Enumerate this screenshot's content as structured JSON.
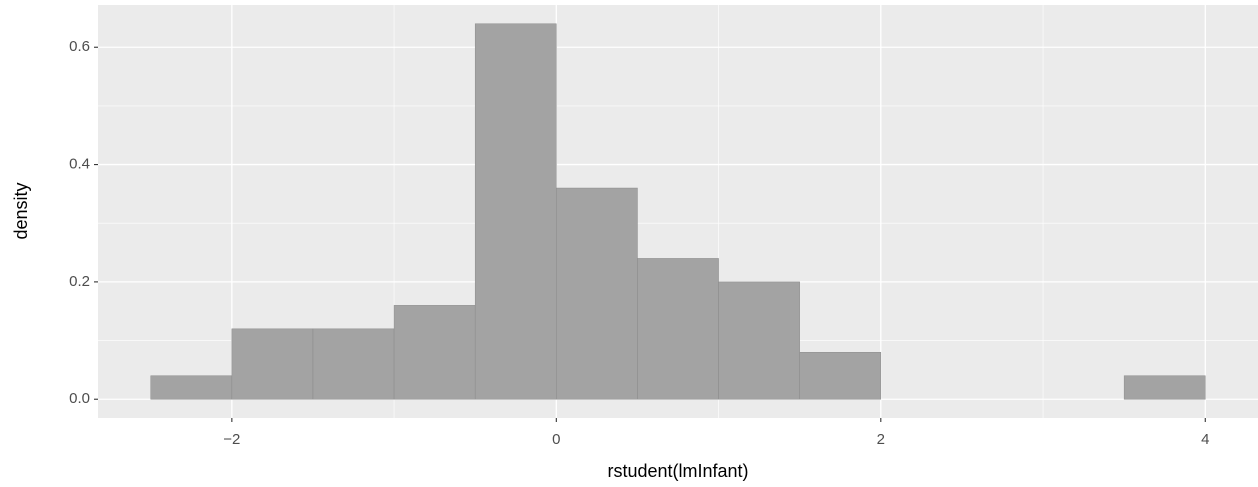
{
  "chart_data": {
    "type": "histogram",
    "bins": [
      -2.5,
      -2,
      -1.5,
      -1,
      -0.5,
      0,
      0.5,
      1,
      1.5,
      2,
      2.5,
      3,
      3.5,
      4
    ],
    "values": [
      0.04,
      0.12,
      0.12,
      0.16,
      0.64,
      0.36,
      0.24,
      0.2,
      0.08,
      0,
      0,
      0,
      0.04
    ],
    "color": "#a3a3a3",
    "xlabel": "rstudent(lmInfant)",
    "ylabel": "density",
    "xlim": [
      -2.825,
      4.325
    ],
    "xticks": [
      {
        "value": -2,
        "label": "−2"
      },
      0,
      2,
      4
    ],
    "ylim": [
      -0.032,
      0.672
    ],
    "yticks": [
      {
        "value": 0,
        "label": "0.0"
      },
      0.2,
      0.4,
      0.6
    ],
    "grid": true
  }
}
